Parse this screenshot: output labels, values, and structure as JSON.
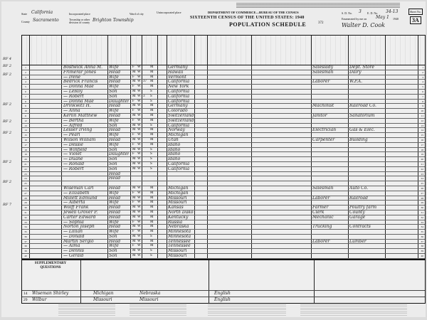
{
  "header": {
    "state_label": "State",
    "state": "California",
    "county_label": "County",
    "county": "Sacramento",
    "township_label": "Township or other division of county",
    "township": "Brighton Township",
    "incorporated_label": "Incorporated place",
    "ward_label": "Ward of city",
    "unincorporated_label": "Unincorporated place",
    "department": "DEPARTMENT OF COMMERCE—BUREAU OF THE CENSUS",
    "census_title": "SIXTEENTH CENSUS OF THE UNITED STATES: 1940",
    "schedule_title": "POPULATION SCHEDULE",
    "sd_label": "S. D. No.",
    "sd": "3",
    "ed_label": "E. D. No.",
    "ed": "34-13",
    "enumerated_label": "Enumerated by me on",
    "enumerated_date": "May 1",
    "year": "1940",
    "enumerator": "Walter D. Cook",
    "sheet_label": "Sheet No.",
    "sheet": "3A",
    "stamp": "372"
  },
  "rows": [
    {
      "line": "1",
      "name": "Bostwick Anna M.",
      "rel": "Wife",
      "sex": "F",
      "race": "W",
      "age": "",
      "mar": "M",
      "bp": "Germany",
      "occ": "Saleslady",
      "ind": "Dept. Store"
    },
    {
      "line": "2",
      "name": "Frimerar Jones",
      "rel": "Head",
      "sex": "M",
      "race": "W",
      "age": "",
      "mar": "M",
      "bp": "Hawaii",
      "occ": "Salesman",
      "ind": "Dairy"
    },
    {
      "line": "3",
      "name": "— Irene",
      "rel": "Wife",
      "sex": "F",
      "race": "W",
      "age": "",
      "mar": "M",
      "bp": "Vermont",
      "occ": "",
      "ind": ""
    },
    {
      "line": "4",
      "name": "Bedrick Francis",
      "rel": "Head",
      "sex": "M",
      "race": "W",
      "age": "37",
      "mar": "M",
      "bp": "California",
      "occ": "Laborer",
      "ind": "W.P.A."
    },
    {
      "line": "5",
      "name": "— Donna Mae",
      "rel": "Wife",
      "sex": "F",
      "race": "W",
      "age": "",
      "mar": "M",
      "bp": "New York",
      "occ": "",
      "ind": ""
    },
    {
      "line": "6",
      "name": "— LeRoy",
      "rel": "Son",
      "sex": "M",
      "race": "W",
      "age": "",
      "mar": "S",
      "bp": "California",
      "occ": "",
      "ind": ""
    },
    {
      "line": "7",
      "name": "— Robert",
      "rel": "Son",
      "sex": "M",
      "race": "W",
      "age": "3",
      "mar": "S",
      "bp": "California",
      "occ": "",
      "ind": ""
    },
    {
      "line": "8",
      "name": "— Donna Mae",
      "rel": "Daughter",
      "sex": "F",
      "race": "W",
      "age": "",
      "mar": "S",
      "bp": "California",
      "occ": "",
      "ind": ""
    },
    {
      "line": "9",
      "name": "Drinkwitz H.",
      "rel": "Head",
      "sex": "M",
      "race": "W",
      "age": "",
      "mar": "M",
      "bp": "Germany",
      "occ": "Machinist",
      "ind": "Railroad Co."
    },
    {
      "line": "10",
      "name": "— Anna",
      "rel": "Wife",
      "sex": "F",
      "race": "W",
      "age": "",
      "mar": "M",
      "bp": "Colorado",
      "occ": "",
      "ind": ""
    },
    {
      "line": "11",
      "name": "Kerlin Matthew",
      "rel": "Head",
      "sex": "M",
      "race": "W",
      "age": "",
      "mar": "M",
      "bp": "Switzerland",
      "occ": "Janitor",
      "ind": "Sanatorium"
    },
    {
      "line": "12",
      "name": "— Bertha",
      "rel": "Wife",
      "sex": "F",
      "race": "W",
      "age": "",
      "mar": "M",
      "bp": "Switzerland",
      "occ": "",
      "ind": ""
    },
    {
      "line": "13",
      "name": "— Alfred",
      "rel": "Son",
      "sex": "M",
      "race": "W",
      "age": "",
      "mar": "S",
      "bp": "California",
      "occ": "",
      "ind": ""
    },
    {
      "line": "14",
      "name": "Lesser Irving",
      "rel": "Head",
      "sex": "M",
      "race": "W",
      "age": "",
      "mar": "M",
      "bp": "Norway",
      "occ": "Electrician",
      "ind": "Gas & Elec."
    },
    {
      "line": "15",
      "name": "— Pearl",
      "rel": "Wife",
      "sex": "F",
      "race": "W",
      "age": "",
      "mar": "M",
      "bp": "Michigan",
      "occ": "",
      "ind": ""
    },
    {
      "line": "16",
      "name": "Wilson William",
      "rel": "Head",
      "sex": "M",
      "race": "W",
      "age": "",
      "mar": "M",
      "bp": "Utah",
      "occ": "Carpenter",
      "ind": "Building"
    },
    {
      "line": "17",
      "name": "— Dessie",
      "rel": "Wife",
      "sex": "F",
      "race": "W",
      "age": "",
      "mar": "M",
      "bp": "Idaho",
      "occ": "",
      "ind": ""
    },
    {
      "line": "18",
      "name": "— Winfield",
      "rel": "Son",
      "sex": "M",
      "race": "W",
      "age": "",
      "mar": "S",
      "bp": "Idaho",
      "occ": "",
      "ind": ""
    },
    {
      "line": "19",
      "name": "— Violet",
      "rel": "Daughter",
      "sex": "F",
      "race": "W",
      "age": "",
      "mar": "S",
      "bp": "Idaho",
      "occ": "",
      "ind": ""
    },
    {
      "line": "20",
      "name": "— Duane",
      "rel": "Son",
      "sex": "M",
      "race": "W",
      "age": "",
      "mar": "S",
      "bp": "Idaho",
      "occ": "",
      "ind": ""
    },
    {
      "line": "21",
      "name": "— Ronald",
      "rel": "Son",
      "sex": "M",
      "race": "W",
      "age": "",
      "mar": "S",
      "bp": "California",
      "occ": "",
      "ind": ""
    },
    {
      "line": "22",
      "name": "— Robert",
      "rel": "Son",
      "sex": "M",
      "race": "W",
      "age": "",
      "mar": "S",
      "bp": "California",
      "occ": "",
      "ind": ""
    },
    {
      "line": "23",
      "name": "",
      "rel": "Head",
      "sex": "",
      "race": "",
      "age": "",
      "mar": "",
      "bp": "",
      "occ": "",
      "ind": ""
    },
    {
      "line": "24",
      "name": "",
      "rel": "Head",
      "sex": "",
      "race": "",
      "age": "",
      "mar": "",
      "bp": "",
      "occ": "",
      "ind": ""
    },
    {
      "line": "25",
      "name": "",
      "rel": "",
      "sex": "",
      "race": "",
      "age": "",
      "mar": "",
      "bp": "",
      "occ": "",
      "ind": ""
    },
    {
      "line": "26",
      "name": "Wiseman Carl",
      "rel": "Head",
      "sex": "M",
      "race": "W",
      "age": "",
      "mar": "M",
      "bp": "Michigan",
      "occ": "Salesman",
      "ind": "Auto Co."
    },
    {
      "line": "27",
      "name": "— Elizabeth",
      "rel": "Wife",
      "sex": "F",
      "race": "W",
      "age": "",
      "mar": "M",
      "bp": "Michigan",
      "occ": "",
      "ind": ""
    },
    {
      "line": "28",
      "name": "Millett Edmund",
      "rel": "Head",
      "sex": "M",
      "race": "W",
      "age": "",
      "mar": "M",
      "bp": "Missouri",
      "occ": "Laborer",
      "ind": "Railroad"
    },
    {
      "line": "29",
      "name": "— Alberta",
      "rel": "Wife",
      "sex": "F",
      "race": "W",
      "age": "",
      "mar": "M",
      "bp": "Missouri",
      "occ": "",
      "ind": ""
    },
    {
      "line": "30",
      "name": "Wolff Frank",
      "rel": "Head",
      "sex": "M",
      "race": "W",
      "age": "",
      "mar": "M",
      "bp": "Kansas",
      "occ": "Farmer",
      "ind": "Poultry farm"
    },
    {
      "line": "31",
      "name": "Jewell Grover P.",
      "rel": "Head",
      "sex": "M",
      "race": "W",
      "age": "",
      "mar": "M",
      "bp": "North Dakota",
      "occ": "Clerk",
      "ind": "County"
    },
    {
      "line": "32",
      "name": "Carter Edward",
      "rel": "Head",
      "sex": "M",
      "race": "W",
      "age": "",
      "mar": "M",
      "bp": "Kentucky",
      "occ": "Mechanic",
      "ind": "Garage"
    },
    {
      "line": "33",
      "name": "— Sophia",
      "rel": "Wife",
      "sex": "F",
      "race": "W",
      "age": "",
      "mar": "M",
      "bp": "Russia",
      "occ": "",
      "ind": ""
    },
    {
      "line": "34",
      "name": "Norton Joseph",
      "rel": "Head",
      "sex": "M",
      "race": "W",
      "age": "",
      "mar": "M",
      "bp": "Nebraska",
      "occ": "Trucking",
      "ind": "Contracts"
    },
    {
      "line": "35",
      "name": "— Lillian",
      "rel": "Wife",
      "sex": "F",
      "race": "W",
      "age": "",
      "mar": "M",
      "bp": "Minnesota",
      "occ": "",
      "ind": ""
    },
    {
      "line": "36",
      "name": "— Donald",
      "rel": "Son",
      "sex": "M",
      "race": "W",
      "age": "",
      "mar": "S",
      "bp": "Minnesota",
      "occ": "",
      "ind": ""
    },
    {
      "line": "37",
      "name": "Martin Sergio",
      "rel": "Head",
      "sex": "M",
      "race": "W",
      "age": "",
      "mar": "M",
      "bp": "Tennessee",
      "occ": "Laborer",
      "ind": "Lumber"
    },
    {
      "line": "38",
      "name": "— Alma",
      "rel": "Wife",
      "sex": "F",
      "race": "W",
      "age": "",
      "mar": "M",
      "bp": "Tennessee",
      "occ": "",
      "ind": ""
    },
    {
      "line": "39",
      "name": "— Dennis",
      "rel": "Son",
      "sex": "M",
      "race": "W",
      "age": "",
      "mar": "S",
      "bp": "Missouri",
      "occ": "",
      "ind": ""
    },
    {
      "line": "40",
      "name": "— Gerald",
      "rel": "Son",
      "sex": "M",
      "race": "W",
      "age": "",
      "mar": "S",
      "bp": "Missouri",
      "occ": "",
      "ind": ""
    }
  ],
  "margin_notes": [
    "RF 4",
    "RF 2",
    "RF 2",
    "RF 2",
    "RF 2",
    "RF 2",
    "RF 2",
    "RF 2",
    "RF 7"
  ],
  "supplementary": {
    "title": "SUPPLEMENTARY QUESTIONS",
    "rows": [
      {
        "line": "14",
        "name": "Wiseman Shirley",
        "father": "Michigan",
        "mother": "Nebraska",
        "tongue": "English"
      },
      {
        "line": "29",
        "name": "Wilbur",
        "father": "Missouri",
        "mother": "Missouri",
        "tongue": "English"
      }
    ]
  }
}
